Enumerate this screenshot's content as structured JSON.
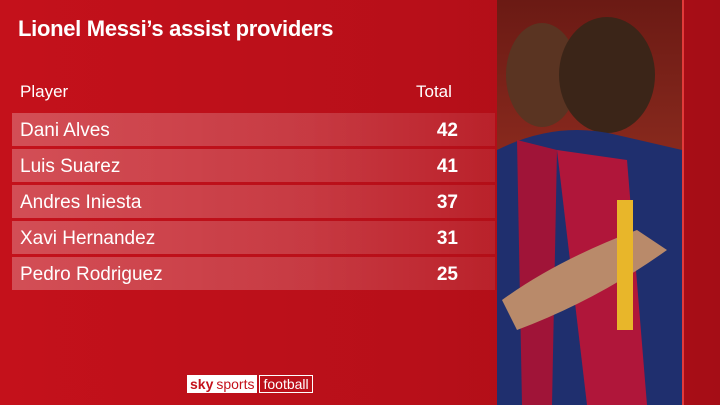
{
  "title": "Lionel Messi’s assist providers",
  "table": {
    "header": [
      "Player",
      "Total"
    ],
    "rows": [
      [
        "Dani Alves",
        42
      ],
      [
        "Luis Suarez",
        41
      ],
      [
        "Andres Iniesta",
        37
      ],
      [
        "Xavi Hernandez",
        31
      ],
      [
        "Pedro Rodriguez",
        25
      ]
    ]
  },
  "branding": {
    "sky": "sky",
    "sports": "sports",
    "football": "football"
  }
}
